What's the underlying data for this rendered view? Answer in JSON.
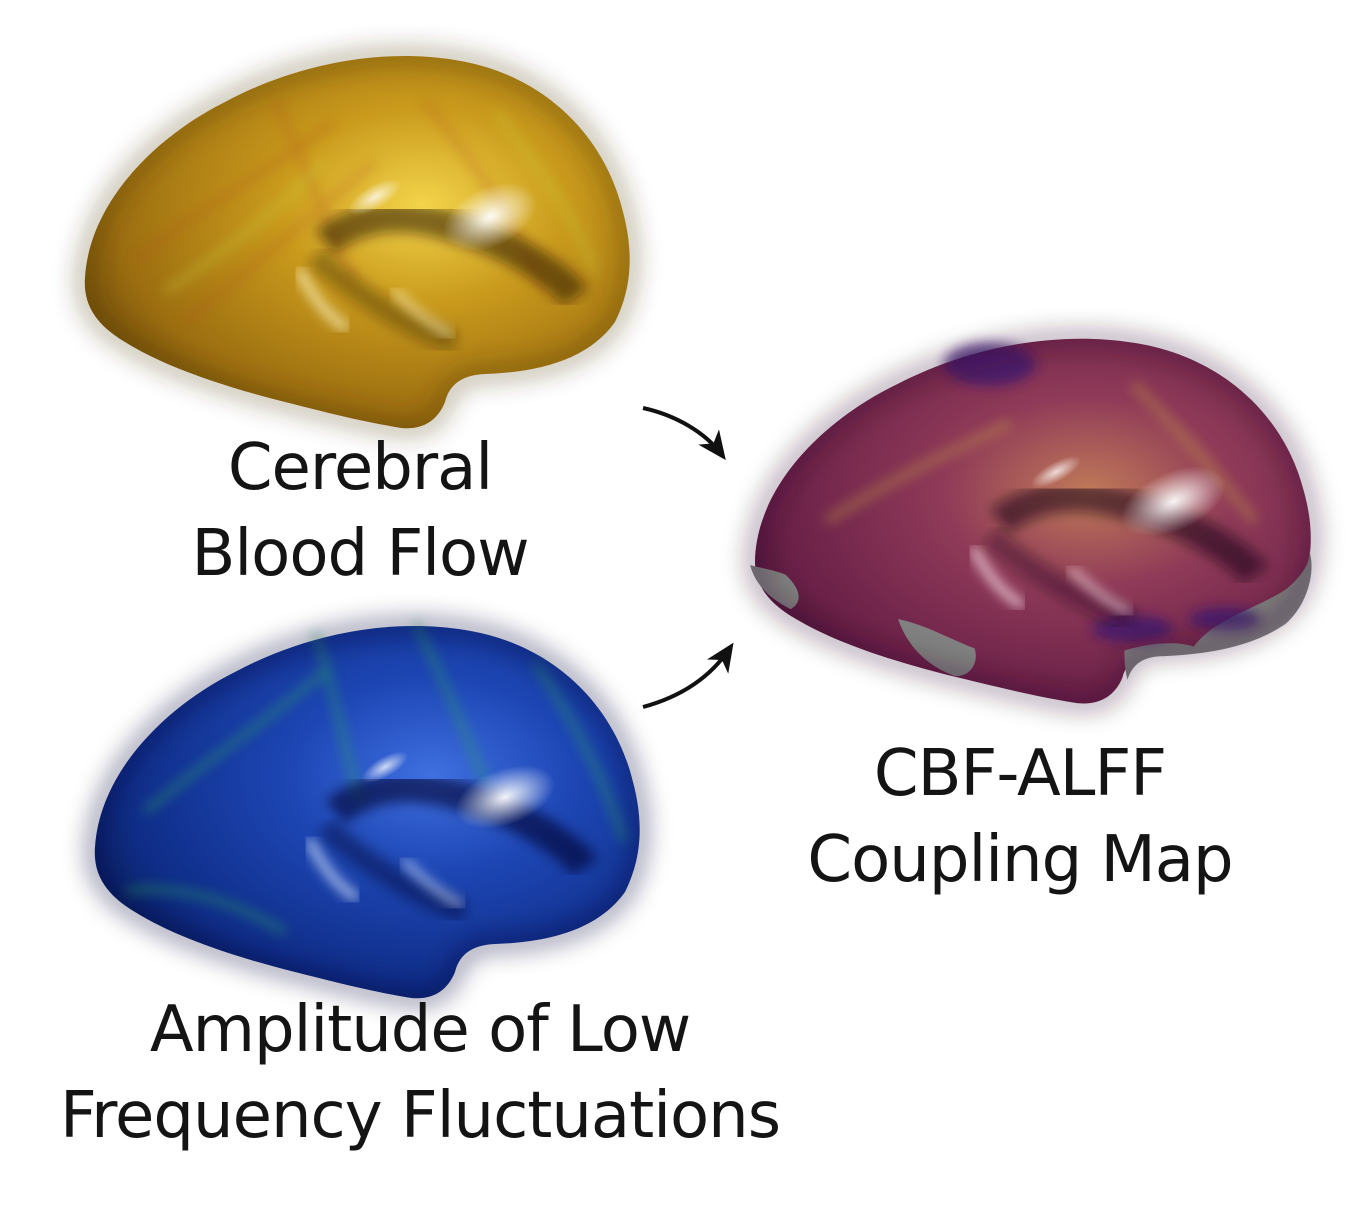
{
  "labels": {
    "cbf": {
      "line1": "Cerebral",
      "line2": "Blood Flow"
    },
    "alff": {
      "line1": "Amplitude of Low",
      "line2": "Frequency Fluctuations"
    },
    "coupling": {
      "line1": "CBF-ALFF",
      "line2": "Coupling Map"
    }
  },
  "colors": {
    "cbf_surface": "#b58a12",
    "alff_surface": "#1a3fa0",
    "coupling_surface": "#7a2a4a",
    "medial_wall": "#808080",
    "arrow": "#111111",
    "text": "#141414"
  }
}
